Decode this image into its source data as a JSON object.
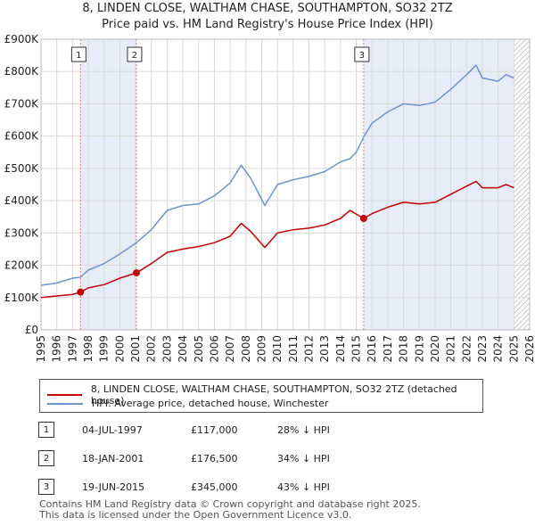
{
  "header": {
    "title_line1": "8, LINDEN CLOSE, WALTHAM CHASE, SOUTHAMPTON, SO32 2TZ",
    "title_line2": "Price paid vs. HM Land Registry's House Price Index (HPI)"
  },
  "legend": {
    "red_label": "8, LINDEN CLOSE, WALTHAM CHASE, SOUTHAMPTON, SO32 2TZ (detached house)",
    "blue_label": "HPI: Average price, detached house, Winchester"
  },
  "sales": [
    {
      "num": "1",
      "date": "04-JUL-1997",
      "price": "£117,000",
      "hpi": "28% ↓ HPI"
    },
    {
      "num": "2",
      "date": "18-JAN-2001",
      "price": "£176,500",
      "hpi": "34% ↓ HPI"
    },
    {
      "num": "3",
      "date": "19-JUN-2015",
      "price": "£345,000",
      "hpi": "43% ↓ HPI"
    }
  ],
  "footer": {
    "line1": "Contains HM Land Registry data © Crown copyright and database right 2025.",
    "line2": "This data is licensed under the Open Government Licence v3.0."
  },
  "chart_data": {
    "type": "line",
    "title": "8, LINDEN CLOSE, WALTHAM CHASE, SOUTHAMPTON, SO32 2TZ",
    "subtitle": "Price paid vs. HM Land Registry's House Price Index (HPI)",
    "xlim": [
      1995,
      2026
    ],
    "ylim": [
      0,
      900000
    ],
    "x_ticks": [
      "1995",
      "1996",
      "1997",
      "1998",
      "1999",
      "2000",
      "2001",
      "2002",
      "2003",
      "2004",
      "2005",
      "2006",
      "2007",
      "2008",
      "2009",
      "2010",
      "2011",
      "2012",
      "2013",
      "2014",
      "2015",
      "2016",
      "2017",
      "2018",
      "2019",
      "2020",
      "2021",
      "2022",
      "2023",
      "2024",
      "2025",
      "2026"
    ],
    "y_ticks": [
      {
        "value": 0,
        "label": "£0"
      },
      {
        "value": 100000,
        "label": "£100K"
      },
      {
        "value": 200000,
        "label": "£200K"
      },
      {
        "value": 300000,
        "label": "£300K"
      },
      {
        "value": 400000,
        "label": "£400K"
      },
      {
        "value": 500000,
        "label": "£500K"
      },
      {
        "value": 600000,
        "label": "£600K"
      },
      {
        "value": 700000,
        "label": "£700K"
      },
      {
        "value": 800000,
        "label": "£800K"
      },
      {
        "value": 900000,
        "label": "£900K"
      }
    ],
    "grid": true,
    "shaded_regions": [
      [
        1997.51,
        2001.05
      ],
      [
        2015.47,
        2025.0
      ]
    ],
    "hatched_region": [
      2025.0,
      2026
    ],
    "series": [
      {
        "name": "HPI: Average price, detached house, Winchester",
        "color": "#6d94cc",
        "x": [
          1995,
          1996,
          1997,
          1997.5,
          1998,
          1999,
          2000,
          2001,
          2002,
          2003,
          2004,
          2005,
          2006,
          2007,
          2007.7,
          2008.3,
          2009.2,
          2010,
          2011,
          2012,
          2013,
          2014,
          2014.6,
          2015,
          2015.5,
          2016,
          2017,
          2018,
          2019,
          2020,
          2021,
          2022,
          2022.6,
          2023,
          2024,
          2024.5,
          2025
        ],
        "values": [
          138000,
          145000,
          160000,
          163000,
          185000,
          205000,
          235000,
          268000,
          310000,
          370000,
          385000,
          390000,
          415000,
          455000,
          510000,
          470000,
          385000,
          450000,
          465000,
          475000,
          490000,
          520000,
          530000,
          550000,
          600000,
          640000,
          675000,
          700000,
          695000,
          705000,
          745000,
          790000,
          820000,
          780000,
          770000,
          790000,
          780000
        ]
      },
      {
        "name": "8, LINDEN CLOSE, WALTHAM CHASE, SOUTHAMPTON, SO32 2TZ (detached house)",
        "color": "#c40000",
        "x": [
          1995,
          1996,
          1997,
          1997.51,
          1998,
          1999,
          2000,
          2001.05,
          2002,
          2003,
          2004,
          2005,
          2006,
          2007,
          2007.7,
          2008.3,
          2009.2,
          2010,
          2011,
          2012,
          2013,
          2014,
          2014.6,
          2015.47,
          2016,
          2017,
          2018,
          2019,
          2020,
          2021,
          2022,
          2022.6,
          2023,
          2024,
          2024.5,
          2025
        ],
        "values": [
          100000,
          105000,
          110000,
          117000,
          130000,
          140000,
          160000,
          176500,
          205000,
          240000,
          250000,
          258000,
          270000,
          290000,
          330000,
          305000,
          255000,
          300000,
          310000,
          315000,
          325000,
          345000,
          370000,
          345000,
          360000,
          380000,
          395000,
          390000,
          395000,
          420000,
          445000,
          460000,
          440000,
          440000,
          450000,
          440000
        ]
      }
    ],
    "markers": [
      {
        "label": "1",
        "x": 1997.51,
        "y": 117000
      },
      {
        "label": "2",
        "x": 2001.05,
        "y": 176500
      },
      {
        "label": "3",
        "x": 2015.47,
        "y": 345000
      }
    ]
  }
}
